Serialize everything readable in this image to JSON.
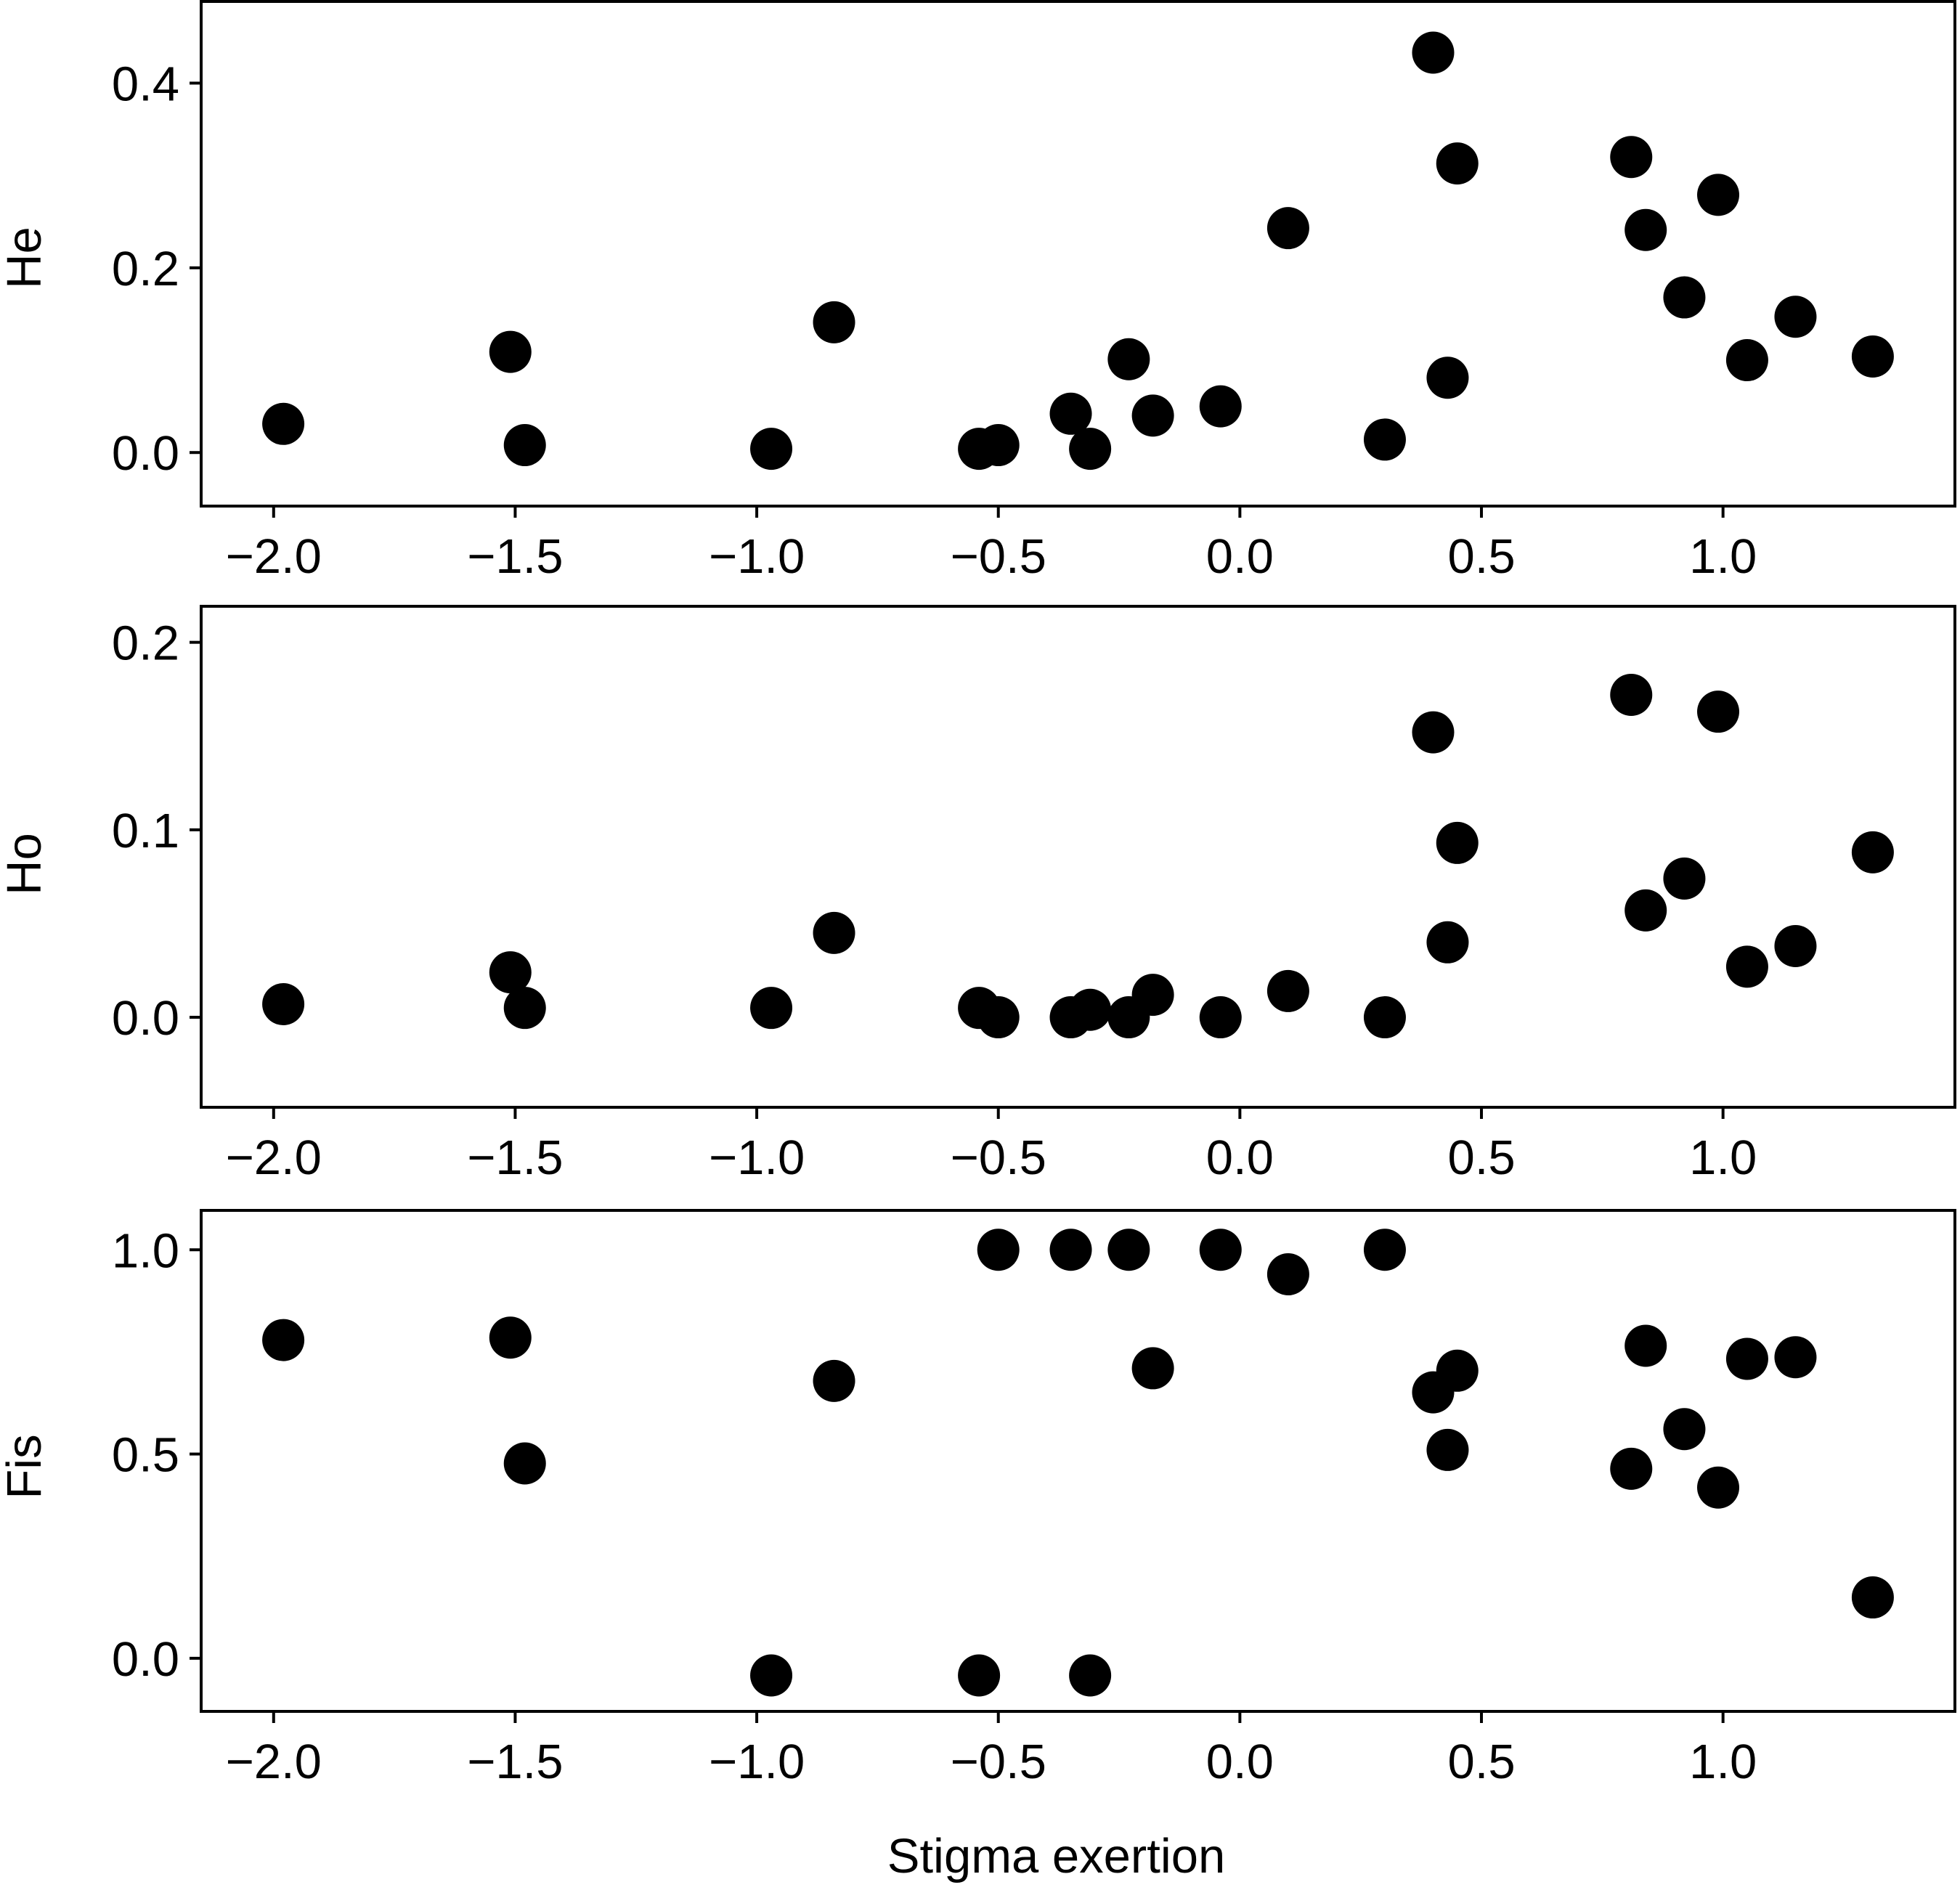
{
  "chart_data": [
    {
      "type": "scatter",
      "ylabel": "He",
      "xlabel": "",
      "xlim": [
        -2.15,
        1.48
      ],
      "ylim": [
        -0.058,
        0.49
      ],
      "xticks": [
        -2.0,
        -1.5,
        -1.0,
        -0.5,
        0.0,
        0.5,
        1.0
      ],
      "xtick_labels": [
        "−2.0",
        "−1.5",
        "−1.0",
        "−0.5",
        "0.0",
        "0.5",
        "1.0"
      ],
      "yticks": [
        0.0,
        0.2,
        0.4
      ],
      "ytick_labels": [
        "0.0",
        "0.2",
        "0.4"
      ],
      "marker_color": "#000000",
      "grid": false,
      "x": [
        -1.98,
        -1.51,
        -1.48,
        -0.97,
        -0.84,
        -0.54,
        -0.5,
        -0.35,
        -0.31,
        -0.23,
        -0.18,
        -0.04,
        0.1,
        0.3,
        0.4,
        0.43,
        0.45,
        0.81,
        0.84,
        0.92,
        0.99,
        1.05,
        1.15,
        1.31
      ],
      "y": [
        0.031,
        0.109,
        0.008,
        0.004,
        0.141,
        0.004,
        0.008,
        0.042,
        0.004,
        0.101,
        0.04,
        0.05,
        0.243,
        0.014,
        0.433,
        0.081,
        0.313,
        0.32,
        0.241,
        0.168,
        0.279,
        0.1,
        0.147,
        0.104
      ]
    },
    {
      "type": "scatter",
      "ylabel": "Ho",
      "xlabel": "",
      "xlim": [
        -2.15,
        1.48
      ],
      "ylim": [
        -0.048,
        0.22
      ],
      "xticks": [
        -2.0,
        -1.5,
        -1.0,
        -0.5,
        0.0,
        0.5,
        1.0
      ],
      "xtick_labels": [
        "−2.0",
        "−1.5",
        "−1.0",
        "−0.5",
        "0.0",
        "0.5",
        "1.0"
      ],
      "yticks": [
        0.0,
        0.1,
        0.2
      ],
      "ytick_labels": [
        "0.0",
        "0.1",
        "0.2"
      ],
      "marker_color": "#000000",
      "grid": false,
      "x": [
        -1.98,
        -1.51,
        -1.48,
        -0.97,
        -0.84,
        -0.54,
        -0.5,
        -0.35,
        -0.31,
        -0.23,
        -0.18,
        -0.04,
        0.1,
        0.3,
        0.4,
        0.43,
        0.45,
        0.81,
        0.84,
        0.92,
        0.99,
        1.05,
        1.15,
        1.31
      ],
      "y": [
        0.007,
        0.024,
        0.005,
        0.005,
        0.045,
        0.005,
        0.0,
        0.0,
        0.004,
        0.0,
        0.012,
        0.0,
        0.014,
        0.0,
        0.152,
        0.04,
        0.093,
        0.172,
        0.057,
        0.074,
        0.163,
        0.027,
        0.038,
        0.088
      ]
    },
    {
      "type": "scatter",
      "ylabel": "Fis",
      "xlabel": "Stigma exertion",
      "xlim": [
        -2.15,
        1.48
      ],
      "ylim": [
        -0.13,
        1.1
      ],
      "xticks": [
        -2.0,
        -1.5,
        -1.0,
        -0.5,
        0.0,
        0.5,
        1.0
      ],
      "xtick_labels": [
        "−2.0",
        "−1.5",
        "−1.0",
        "−0.5",
        "0.0",
        "0.5",
        "1.0"
      ],
      "yticks": [
        0.0,
        0.5,
        1.0
      ],
      "ytick_labels": [
        "0.0",
        "0.5",
        "1.0"
      ],
      "marker_color": "#000000",
      "grid": false,
      "x": [
        -1.98,
        -1.51,
        -1.48,
        -0.97,
        -0.84,
        -0.54,
        -0.5,
        -0.35,
        -0.31,
        -0.23,
        -0.18,
        -0.04,
        0.1,
        0.3,
        0.4,
        0.43,
        0.45,
        0.81,
        0.84,
        0.92,
        0.99,
        1.05,
        1.15,
        1.31
      ],
      "y": [
        0.779,
        0.785,
        0.477,
        -0.042,
        0.679,
        -0.042,
        1.0,
        1.0,
        -0.042,
        1.0,
        0.71,
        1.0,
        0.94,
        1.0,
        0.651,
        0.51,
        0.704,
        0.464,
        0.765,
        0.561,
        0.418,
        0.733,
        0.737,
        0.149
      ]
    }
  ]
}
